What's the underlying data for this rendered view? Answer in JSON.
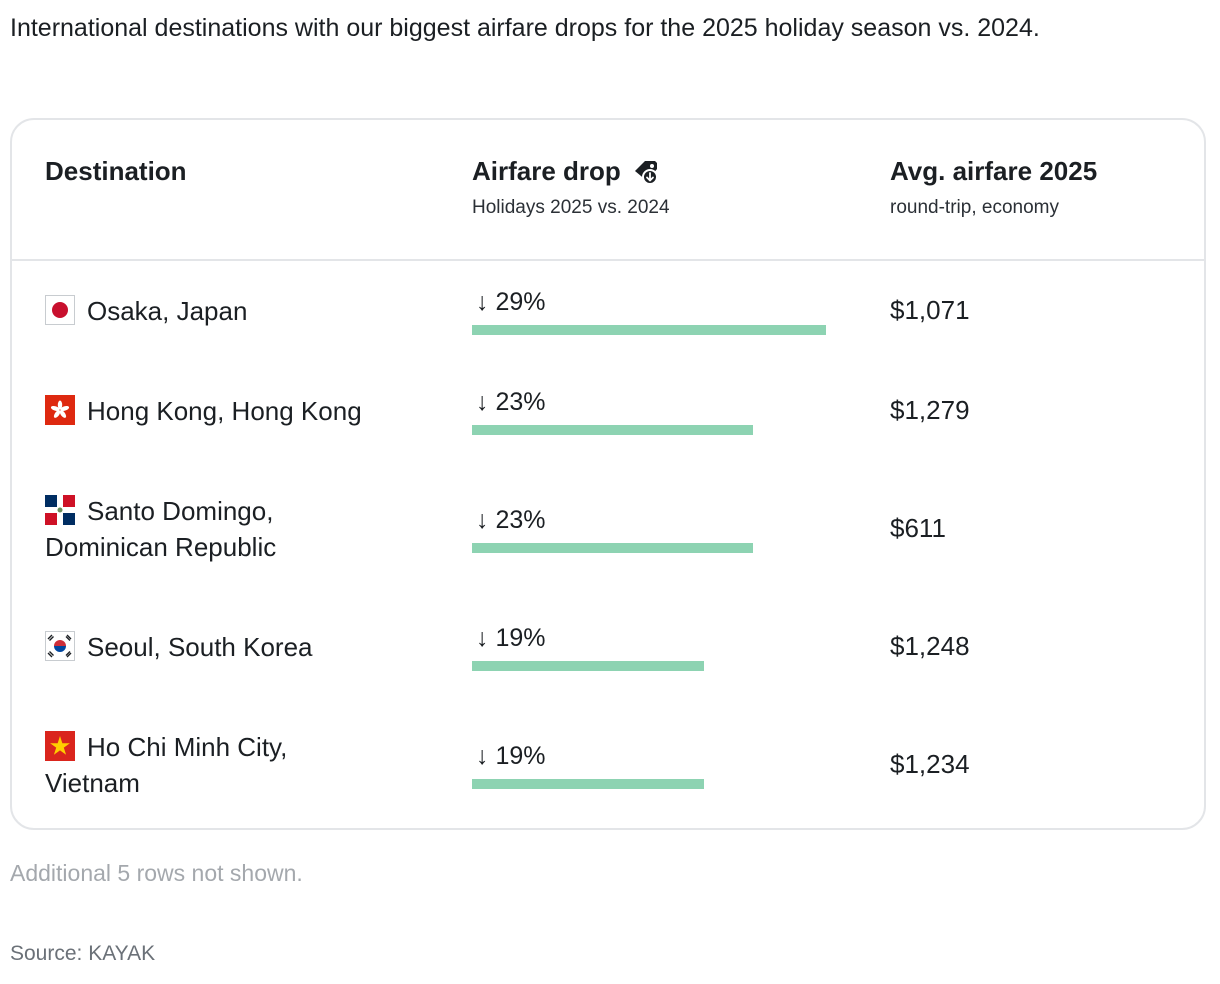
{
  "intro": "International destinations with our biggest airfare drops for the 2025 holiday season vs. 2024.",
  "headers": {
    "destination": "Destination",
    "drop_title": "Airfare drop",
    "drop_sub": "Holidays 2025 vs. 2024",
    "drop_icon": "price-tag-down-icon",
    "fare_title": "Avg. airfare 2025",
    "fare_sub": "round-trip, economy"
  },
  "chart_data": {
    "type": "table",
    "columns": [
      "Destination",
      "Airfare drop",
      "Avg. airfare 2025"
    ],
    "bar_color": "#8dd3b2",
    "max_drop": 29,
    "rows": [
      {
        "flag": "japan-flag-icon",
        "destination_line1": "Osaka, Japan",
        "destination_line2": "",
        "drop": 29,
        "drop_label": "↓ 29%",
        "fare": "$1,071"
      },
      {
        "flag": "hong-kong-flag-icon",
        "destination_line1": "Hong Kong, Hong Kong",
        "destination_line2": "",
        "drop": 23,
        "drop_label": "↓ 23%",
        "fare": "$1,279"
      },
      {
        "flag": "dominican-republic-flag-icon",
        "destination_line1": "Santo Domingo,",
        "destination_line2": "Dominican Republic",
        "drop": 23,
        "drop_label": "↓ 23%",
        "fare": "$611"
      },
      {
        "flag": "south-korea-flag-icon",
        "destination_line1": "Seoul, South Korea",
        "destination_line2": "",
        "drop": 19,
        "drop_label": "↓ 19%",
        "fare": "$1,248"
      },
      {
        "flag": "vietnam-flag-icon",
        "destination_line1": "Ho Chi Minh City,",
        "destination_line2": "Vietnam",
        "drop": 19,
        "drop_label": "↓ 19%",
        "fare": "$1,234"
      }
    ]
  },
  "footer": {
    "note": "Additional 5 rows not shown.",
    "source": "Source: KAYAK"
  }
}
